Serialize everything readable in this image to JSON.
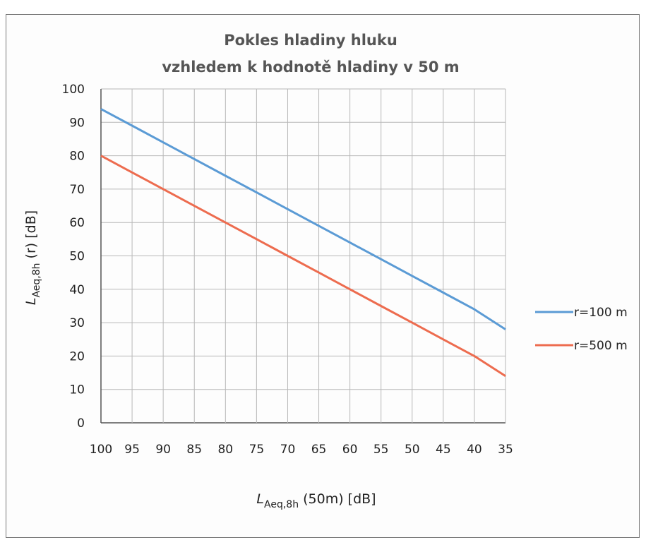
{
  "chart_data": {
    "type": "line",
    "title_lines": [
      "Pokles hladiny hluku",
      "vzhledem k hodnotě hladiny v 50 m"
    ],
    "xlabel": {
      "main": "L",
      "sub": "Aeq,8h",
      "rest": " (50m)  [dB]"
    },
    "ylabel": {
      "main": "L",
      "sub": "Aeq,8h",
      "rest": " (r)  [dB]"
    },
    "x": [
      100,
      95,
      90,
      85,
      80,
      75,
      70,
      65,
      60,
      55,
      50,
      45,
      40,
      35
    ],
    "x_tick_labels": [
      "100",
      "95",
      "90",
      "85",
      "80",
      "75",
      "70",
      "65",
      "60",
      "55",
      "50",
      "45",
      "40",
      "35"
    ],
    "xlim": [
      100,
      35
    ],
    "ylim": [
      0,
      100
    ],
    "y_ticks": [
      0,
      10,
      20,
      30,
      40,
      50,
      60,
      70,
      80,
      90,
      100
    ],
    "y_tick_labels": [
      "0",
      "10",
      "20",
      "30",
      "40",
      "50",
      "60",
      "70",
      "80",
      "90",
      "100"
    ],
    "grid": true,
    "legend_position": "right",
    "series": [
      {
        "name": "r=100 m",
        "color": "#5b9bd5",
        "values": [
          94,
          89,
          84,
          79,
          74,
          69,
          64,
          59,
          54,
          49,
          44,
          39,
          34,
          28
        ]
      },
      {
        "name": "r=500 m",
        "color": "#ed6c4f",
        "values": [
          80,
          75,
          70,
          65,
          60,
          55,
          50,
          45,
          40,
          35,
          30,
          25,
          20,
          14
        ]
      }
    ]
  }
}
